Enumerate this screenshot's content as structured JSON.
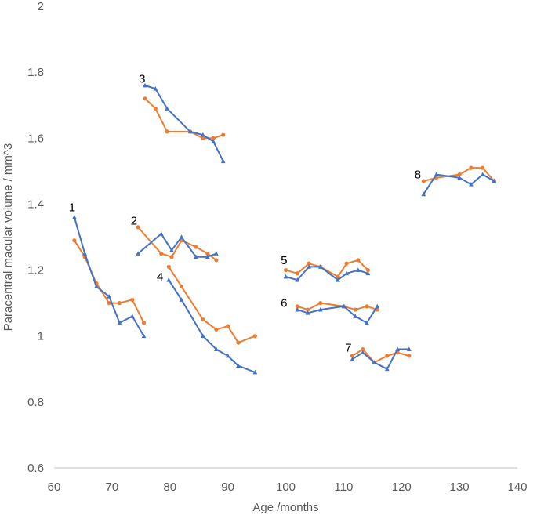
{
  "chart_data": {
    "type": "line",
    "title": "",
    "xlabel": "Age /months",
    "ylabel": "Paracentral macular volume / mm^3",
    "xlim": [
      60,
      140
    ],
    "ylim": [
      0.6,
      2
    ],
    "xticks": [
      60,
      70,
      80,
      90,
      100,
      110,
      120,
      130,
      140
    ],
    "yticks": [
      0.6,
      0.8,
      1,
      1.2,
      1.4,
      1.6,
      1.8,
      2
    ],
    "ytick_labels": [
      "0.6",
      "0.8",
      "1",
      "1.2",
      "1.4",
      "1.6",
      "1.8",
      "2"
    ],
    "grid": false,
    "legend": "none",
    "colors": {
      "blue": "#4472c4",
      "orange": "#ed7d31",
      "axis": "#bfbfbf",
      "text": "#595959"
    },
    "groups": [
      {
        "label": "1",
        "label_pos": [
          63.1,
          1.39
        ],
        "blue": [
          [
            63.5,
            1.36
          ],
          [
            65.3,
            1.25
          ],
          [
            67.3,
            1.15
          ],
          [
            69.5,
            1.12
          ],
          [
            71.3,
            1.04
          ],
          [
            73.5,
            1.06
          ],
          [
            75.5,
            1.0
          ]
        ],
        "orange": [
          [
            63.5,
            1.29
          ],
          [
            65.3,
            1.24
          ],
          [
            67.3,
            1.16
          ],
          [
            69.5,
            1.1
          ],
          [
            71.3,
            1.1
          ],
          [
            73.5,
            1.11
          ],
          [
            75.5,
            1.04
          ]
        ]
      },
      {
        "label": "2",
        "label_pos": [
          73.8,
          1.35
        ],
        "blue": [
          [
            74.5,
            1.25
          ],
          [
            78.5,
            1.31
          ],
          [
            80.3,
            1.26
          ],
          [
            82.0,
            1.3
          ],
          [
            84.5,
            1.24
          ],
          [
            86.5,
            1.24
          ],
          [
            88.0,
            1.25
          ]
        ],
        "orange": [
          [
            74.5,
            1.33
          ],
          [
            78.5,
            1.25
          ],
          [
            80.3,
            1.24
          ],
          [
            82.0,
            1.29
          ],
          [
            84.5,
            1.27
          ],
          [
            86.5,
            1.25
          ],
          [
            88.0,
            1.23
          ]
        ]
      },
      {
        "label": "3",
        "label_pos": [
          75.2,
          1.78
        ],
        "blue": [
          [
            75.7,
            1.76
          ],
          [
            77.5,
            1.75
          ],
          [
            79.5,
            1.69
          ],
          [
            83.5,
            1.62
          ],
          [
            85.7,
            1.61
          ],
          [
            87.5,
            1.59
          ],
          [
            89.2,
            1.53
          ]
        ],
        "orange": [
          [
            75.7,
            1.72
          ],
          [
            77.5,
            1.69
          ],
          [
            79.5,
            1.62
          ],
          [
            83.5,
            1.62
          ],
          [
            85.7,
            1.6
          ],
          [
            87.5,
            1.6
          ],
          [
            89.2,
            1.61
          ]
        ]
      },
      {
        "label": "4",
        "label_pos": [
          78.3,
          1.18
        ],
        "blue": [
          [
            79.8,
            1.17
          ],
          [
            82.0,
            1.11
          ],
          [
            85.7,
            1.0
          ],
          [
            88.0,
            0.96
          ],
          [
            90.0,
            0.94
          ],
          [
            91.8,
            0.91
          ],
          [
            94.7,
            0.89
          ]
        ],
        "orange": [
          [
            79.8,
            1.21
          ],
          [
            82.0,
            1.15
          ],
          [
            85.7,
            1.05
          ],
          [
            88.0,
            1.02
          ],
          [
            90.0,
            1.03
          ],
          [
            91.8,
            0.98
          ],
          [
            94.7,
            1.0
          ]
        ]
      },
      {
        "label": "5",
        "label_pos": [
          99.7,
          1.23
        ],
        "blue": [
          [
            100.0,
            1.18
          ],
          [
            102.0,
            1.17
          ],
          [
            104.0,
            1.21
          ],
          [
            106.0,
            1.21
          ],
          [
            109.0,
            1.17
          ],
          [
            110.5,
            1.19
          ],
          [
            112.5,
            1.2
          ],
          [
            114.2,
            1.19
          ]
        ],
        "orange": [
          [
            100.0,
            1.2
          ],
          [
            102.0,
            1.19
          ],
          [
            104.0,
            1.22
          ],
          [
            106.0,
            1.21
          ],
          [
            109.0,
            1.18
          ],
          [
            110.5,
            1.22
          ],
          [
            112.5,
            1.23
          ],
          [
            114.2,
            1.2
          ]
        ]
      },
      {
        "label": "6",
        "label_pos": [
          99.7,
          1.1
        ],
        "blue": [
          [
            102.0,
            1.08
          ],
          [
            103.8,
            1.07
          ],
          [
            106.0,
            1.08
          ],
          [
            110.0,
            1.09
          ],
          [
            112.0,
            1.06
          ],
          [
            114.0,
            1.04
          ],
          [
            115.8,
            1.09
          ]
        ],
        "orange": [
          [
            102.0,
            1.09
          ],
          [
            103.8,
            1.08
          ],
          [
            106.0,
            1.1
          ],
          [
            110.0,
            1.09
          ],
          [
            112.0,
            1.08
          ],
          [
            114.0,
            1.09
          ],
          [
            115.8,
            1.08
          ]
        ]
      },
      {
        "label": "7",
        "label_pos": [
          110.8,
          0.965
        ],
        "blue": [
          [
            111.5,
            0.93
          ],
          [
            113.3,
            0.95
          ],
          [
            115.3,
            0.92
          ],
          [
            117.5,
            0.9
          ],
          [
            119.3,
            0.96
          ],
          [
            121.3,
            0.96
          ]
        ],
        "orange": [
          [
            111.5,
            0.94
          ],
          [
            113.3,
            0.96
          ],
          [
            115.3,
            0.92
          ],
          [
            117.5,
            0.94
          ],
          [
            119.3,
            0.95
          ],
          [
            121.3,
            0.94
          ]
        ]
      },
      {
        "label": "8",
        "label_pos": [
          122.8,
          1.49
        ],
        "blue": [
          [
            123.8,
            1.43
          ],
          [
            126.0,
            1.49
          ],
          [
            130.0,
            1.48
          ],
          [
            132.0,
            1.46
          ],
          [
            134.0,
            1.49
          ],
          [
            136.0,
            1.47
          ]
        ],
        "orange": [
          [
            123.8,
            1.47
          ],
          [
            126.0,
            1.48
          ],
          [
            130.0,
            1.49
          ],
          [
            132.0,
            1.51
          ],
          [
            134.0,
            1.51
          ],
          [
            136.0,
            1.47
          ]
        ]
      }
    ]
  }
}
